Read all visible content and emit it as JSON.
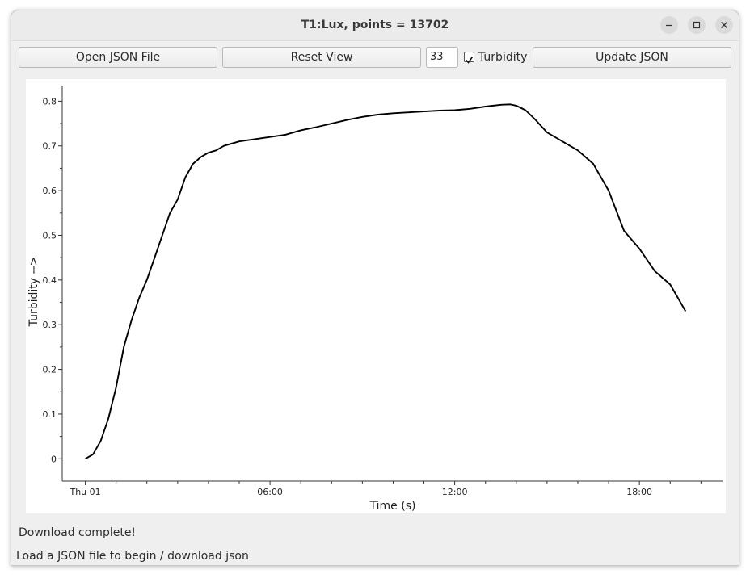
{
  "window": {
    "title": "T1:Lux, points = 13702"
  },
  "toolbar": {
    "open_label": "Open JSON File",
    "reset_label": "Reset View",
    "spin_value": "33",
    "turbidity_checked": true,
    "turbidity_label": "Turbidity",
    "update_label": "Update JSON"
  },
  "status": {
    "message": "Download complete!",
    "footer": "Load a JSON file to begin / download json"
  },
  "chart_data": {
    "type": "line",
    "xlabel": "Time (s)",
    "ylabel": "Turbidity -->",
    "x_ticks": [
      "Thu 01",
      "06:00",
      "12:00",
      "18:00"
    ],
    "y_ticks": [
      "0",
      "0.1",
      "0.2",
      "0.3",
      "0.4",
      "0.5",
      "0.6",
      "0.7",
      "0.8"
    ],
    "xlim_hours": [
      -0.75,
      20.7
    ],
    "ylim": [
      -0.05,
      0.835
    ],
    "line_color": "#000000",
    "series": [
      {
        "x_hours": [
          0,
          0.25,
          0.5,
          0.75,
          1.0,
          1.25,
          1.5,
          1.75,
          2.0,
          2.25,
          2.5,
          2.75,
          3.0,
          3.25,
          3.5,
          3.75,
          4.0,
          4.25,
          4.5,
          5.0,
          5.5,
          6.0,
          6.5,
          7.0,
          7.5,
          8.0,
          8.5,
          9.0,
          9.5,
          10.0,
          10.5,
          11.0,
          11.5,
          12.0,
          12.5,
          13.0,
          13.5,
          13.8,
          14.0,
          14.3,
          14.6,
          15.0,
          15.5,
          16.0,
          16.5,
          17.0,
          17.5,
          18.0,
          18.5,
          19.0,
          19.25,
          19.5
        ],
        "y": [
          0.0,
          0.01,
          0.04,
          0.09,
          0.16,
          0.25,
          0.31,
          0.36,
          0.4,
          0.45,
          0.5,
          0.55,
          0.58,
          0.63,
          0.66,
          0.675,
          0.685,
          0.69,
          0.7,
          0.71,
          0.715,
          0.72,
          0.725,
          0.735,
          0.742,
          0.75,
          0.758,
          0.765,
          0.77,
          0.773,
          0.775,
          0.777,
          0.779,
          0.78,
          0.783,
          0.788,
          0.792,
          0.793,
          0.79,
          0.78,
          0.76,
          0.73,
          0.71,
          0.69,
          0.66,
          0.6,
          0.51,
          0.47,
          0.42,
          0.39,
          0.36,
          0.33
        ]
      }
    ]
  }
}
